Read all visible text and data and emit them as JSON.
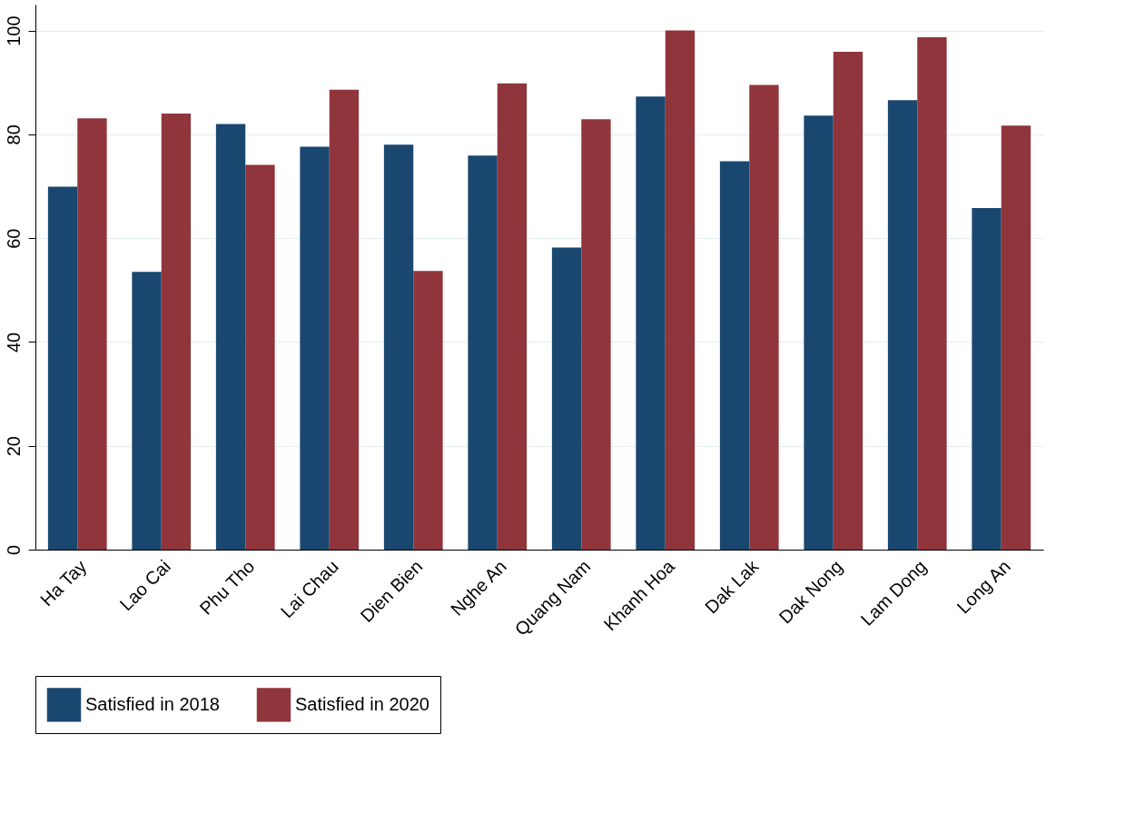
{
  "chart_data": {
    "type": "bar",
    "categories": [
      "Ha Tay",
      "Lao Cai",
      "Phu Tho",
      "Lai Chau",
      "Dien Bien",
      "Nghe An",
      "Quang Nam",
      "Khanh Hoa",
      "Dak Lak",
      "Dak Nong",
      "Lam Dong",
      "Long An"
    ],
    "series": [
      {
        "name": "Satisfied in 2018",
        "color": "#1a476f",
        "values": [
          69.9,
          53.5,
          82.0,
          77.6,
          78.0,
          75.9,
          58.2,
          87.3,
          74.8,
          83.6,
          86.6,
          65.8
        ]
      },
      {
        "name": "Satisfied in 2020",
        "color": "#90353b",
        "values": [
          83.1,
          84.0,
          74.1,
          88.6,
          53.7,
          89.8,
          82.9,
          100.0,
          89.5,
          95.9,
          98.7,
          81.7
        ]
      }
    ],
    "ylim": [
      0,
      105
    ],
    "yticks": [
      0,
      20,
      40,
      60,
      80,
      100
    ],
    "grid": "y",
    "legend": "bottom"
  }
}
